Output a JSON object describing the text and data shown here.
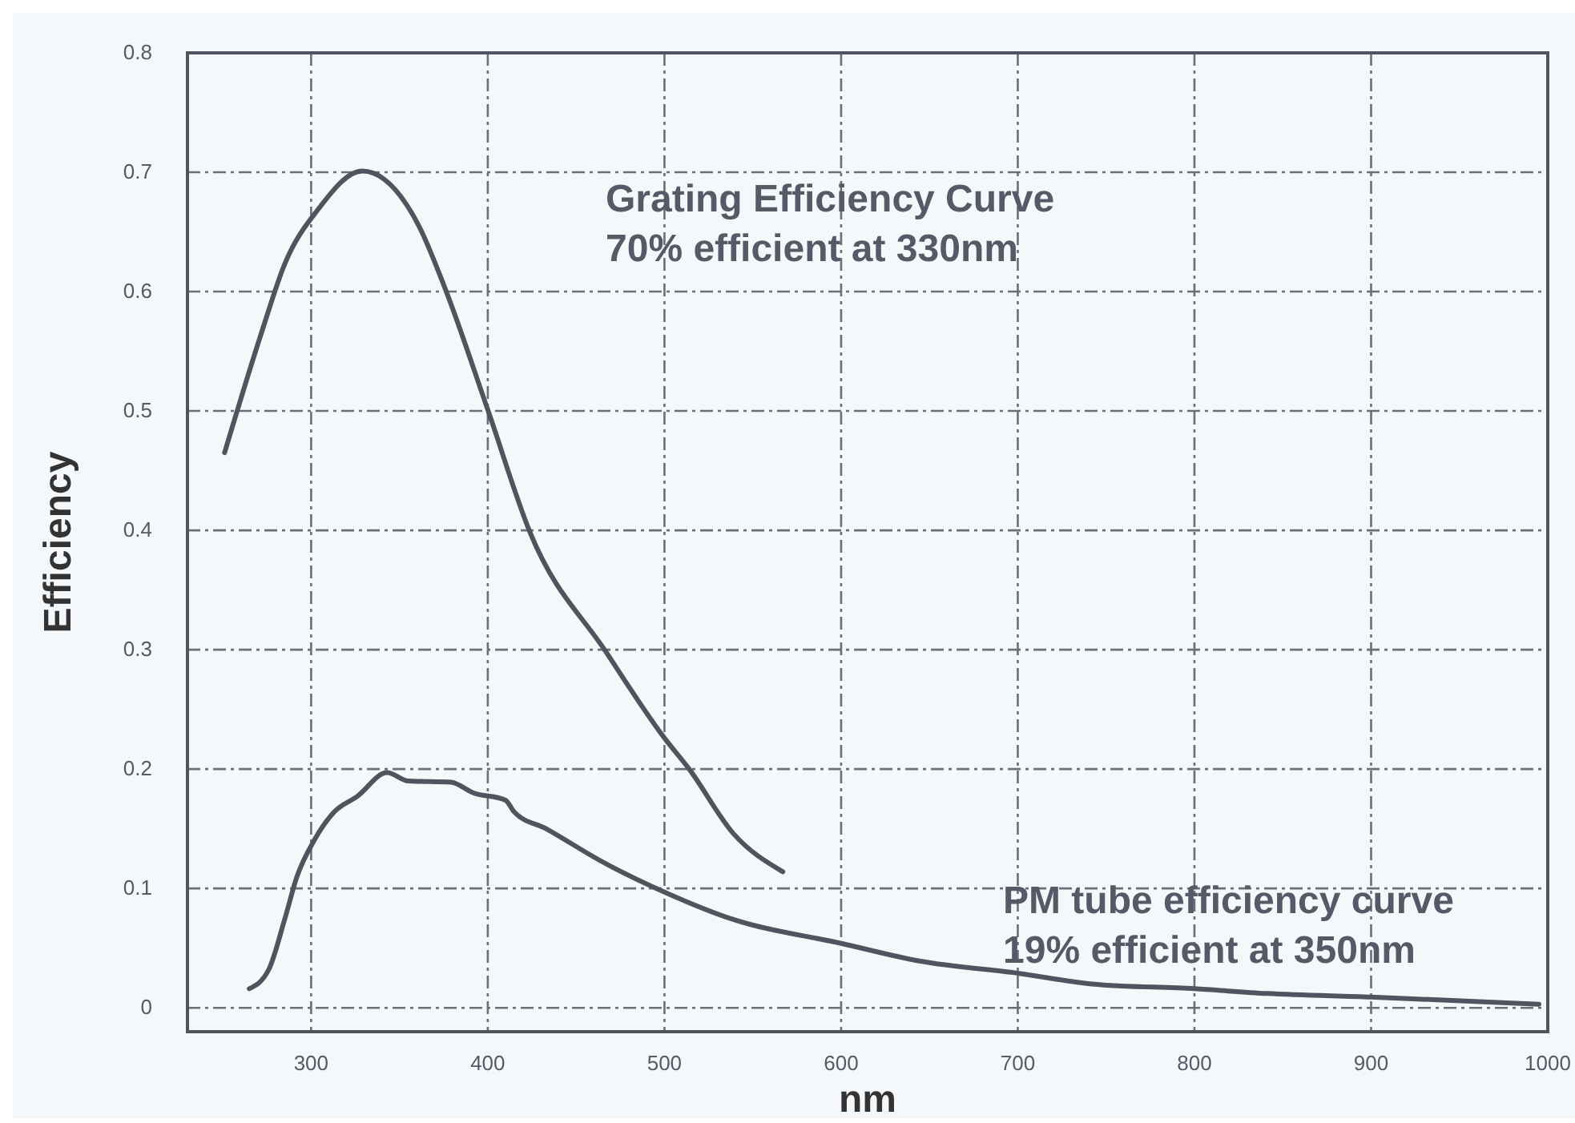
{
  "chart_data": {
    "type": "line",
    "xlabel": "nm",
    "ylabel": "Efficiency",
    "xlim": [
      230,
      1000
    ],
    "ylim": [
      -0.02,
      0.8
    ],
    "xticks": [
      300,
      400,
      500,
      600,
      700,
      800,
      900,
      1000
    ],
    "yticks": [
      0,
      0.1,
      0.2,
      0.3,
      0.4,
      0.5,
      0.6,
      0.7,
      0.8
    ],
    "grid": true,
    "marker": "none",
    "line_style": "solid",
    "series": [
      {
        "color": "#4f545e",
        "x": [
          251,
          272,
          285,
          304,
          329,
          361,
          376,
          400,
          424,
          467,
          500,
          514,
          539,
          567
        ],
        "values": [
          0.465,
          0.566,
          0.623,
          0.669,
          0.701,
          0.655,
          0.602,
          0.501,
          0.398,
          0.298,
          0.226,
          0.2,
          0.146,
          0.114
        ]
      },
      {
        "color": "#4f545e",
        "x": [
          265,
          276,
          285,
          292,
          302,
          313,
          326,
          343,
          355,
          379,
          392,
          410,
          415,
          433,
          464,
          500,
          539,
          600,
          645,
          700,
          742,
          800,
          841,
          900,
          995
        ],
        "values": [
          0.016,
          0.032,
          0.074,
          0.11,
          0.141,
          0.164,
          0.177,
          0.197,
          0.19,
          0.189,
          0.18,
          0.174,
          0.164,
          0.15,
          0.123,
          0.097,
          0.074,
          0.054,
          0.039,
          0.029,
          0.02,
          0.016,
          0.012,
          0.009,
          0.003
        ]
      }
    ],
    "annotations": [
      "Grating Efficiency Curve",
      "70% efficient at 330nm",
      "PM tube efficiency curve",
      "19% efficient at 350nm"
    ]
  }
}
